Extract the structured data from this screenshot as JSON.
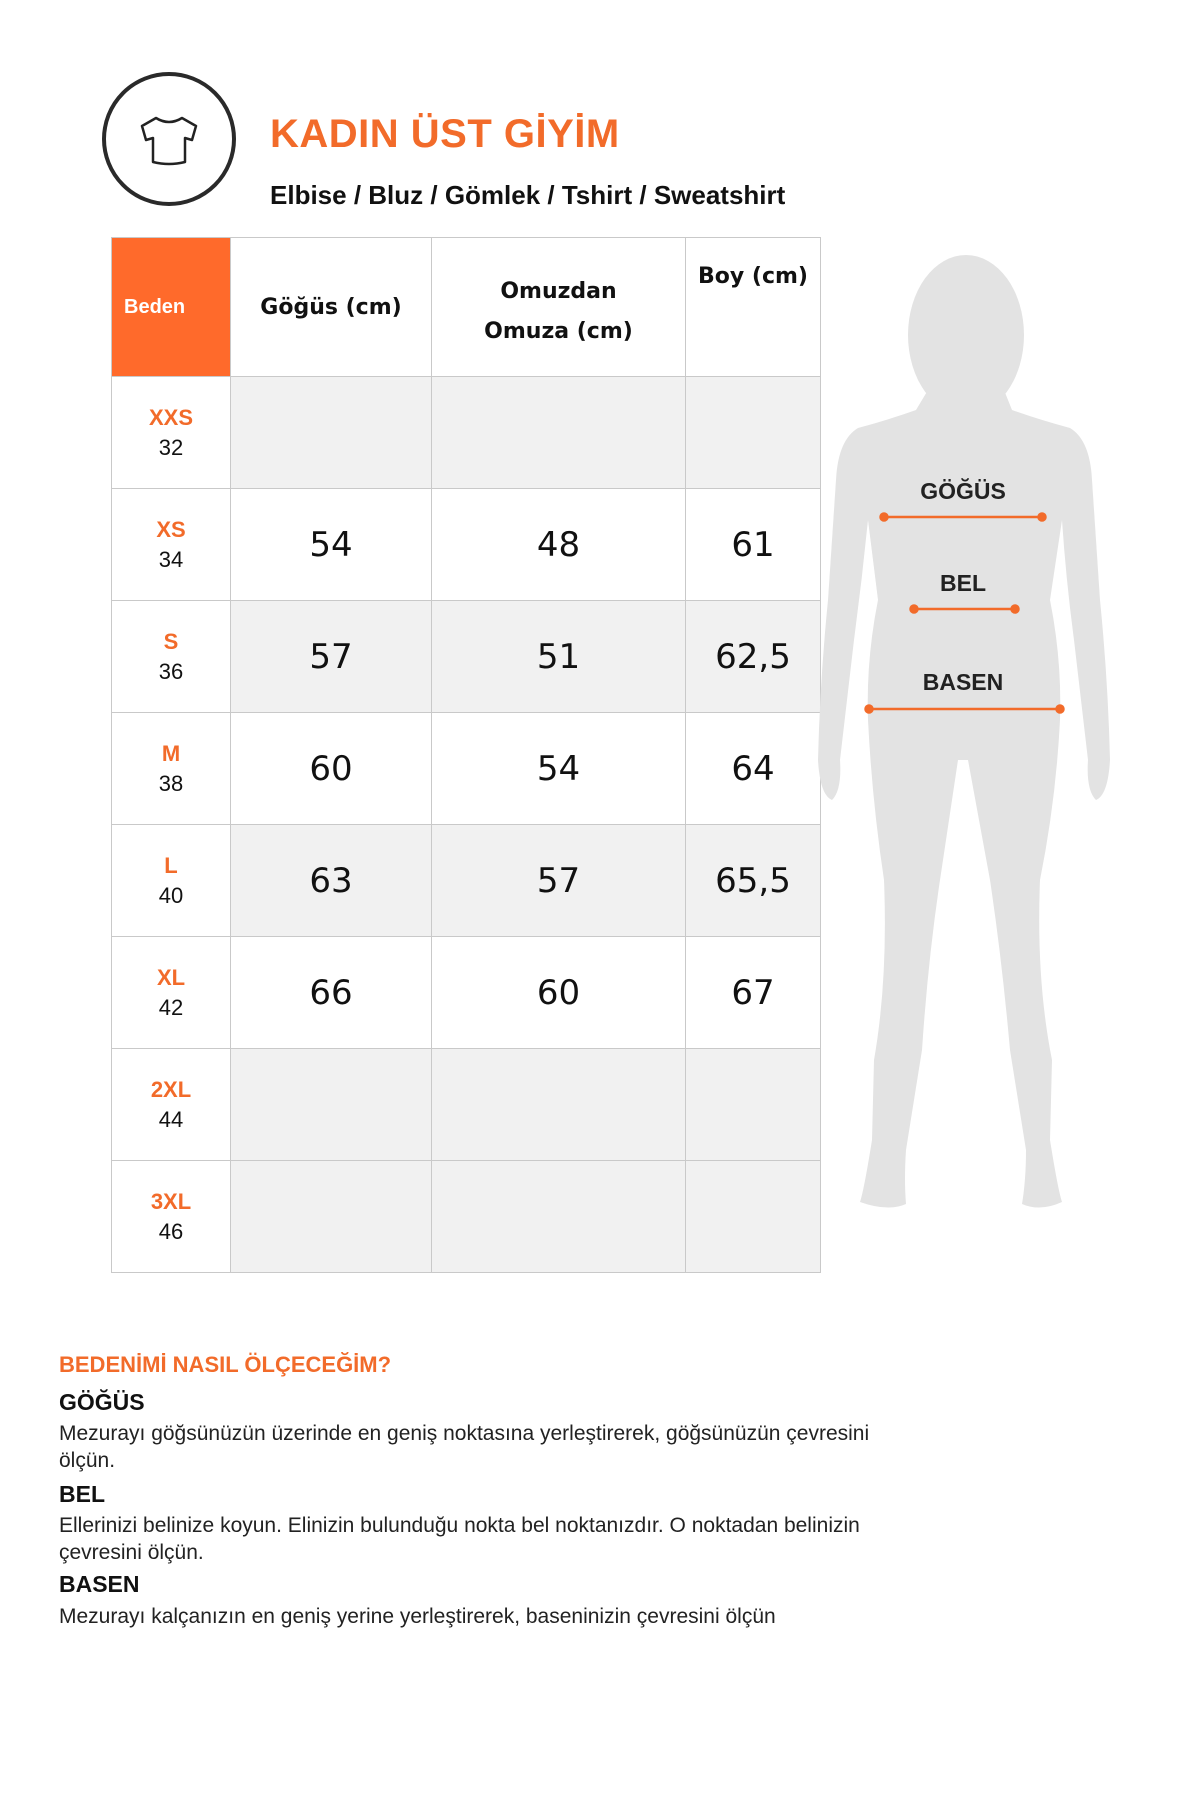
{
  "header": {
    "icon": "tshirt-icon",
    "title": "KADIN ÜST GİYİM",
    "subtitle": "Elbise / Bluz / Gömlek / Tshirt / Sweatshirt"
  },
  "table": {
    "columns": [
      "Beden",
      "Göğüs (cm)",
      "Omuzdan Omuza (cm)",
      "Boy (cm)"
    ],
    "rows": [
      {
        "size": "XXS",
        "number": "32",
        "gogus": "",
        "omuz": "",
        "boy": ""
      },
      {
        "size": "XS",
        "number": "34",
        "gogus": "54",
        "omuz": "48",
        "boy": "61"
      },
      {
        "size": "S",
        "number": "36",
        "gogus": "57",
        "omuz": "51",
        "boy": "62,5"
      },
      {
        "size": "M",
        "number": "38",
        "gogus": "60",
        "omuz": "54",
        "boy": "64"
      },
      {
        "size": "L",
        "number": "40",
        "gogus": "63",
        "omuz": "57",
        "boy": "65,5"
      },
      {
        "size": "XL",
        "number": "42",
        "gogus": "66",
        "omuz": "60",
        "boy": "67"
      },
      {
        "size": "2XL",
        "number": "44",
        "gogus": "",
        "omuz": "",
        "boy": ""
      },
      {
        "size": "3XL",
        "number": "46",
        "gogus": "",
        "omuz": "",
        "boy": ""
      }
    ]
  },
  "figure": {
    "labels": [
      "GÖĞÜS",
      "BEL",
      "BASEN"
    ]
  },
  "guide": {
    "heading": "BEDENİMİ NASIL ÖLÇECEĞİM?",
    "sections": [
      {
        "title": "GÖĞÜS",
        "text": "Mezurayı göğsünüzün üzerinde en geniş noktasına yerleştirerek, göğsünüzün çevresini ölçün."
      },
      {
        "title": "BEL",
        "text": "Ellerinizi belinize koyun. Elinizin bulunduğu nokta bel noktanızdır. O noktadan belinizin çevresini ölçün."
      },
      {
        "title": "BASEN",
        "text": "Mezurayı kalçanızın en geniş yerine yerleştirerek, baseninizin çevresini ölçün"
      }
    ]
  },
  "colors": {
    "accent": "#f26b2a",
    "header_cell": "#ff6a2b",
    "row_gray": "#f1f1f1",
    "silhouette": "#e3e3e3"
  }
}
